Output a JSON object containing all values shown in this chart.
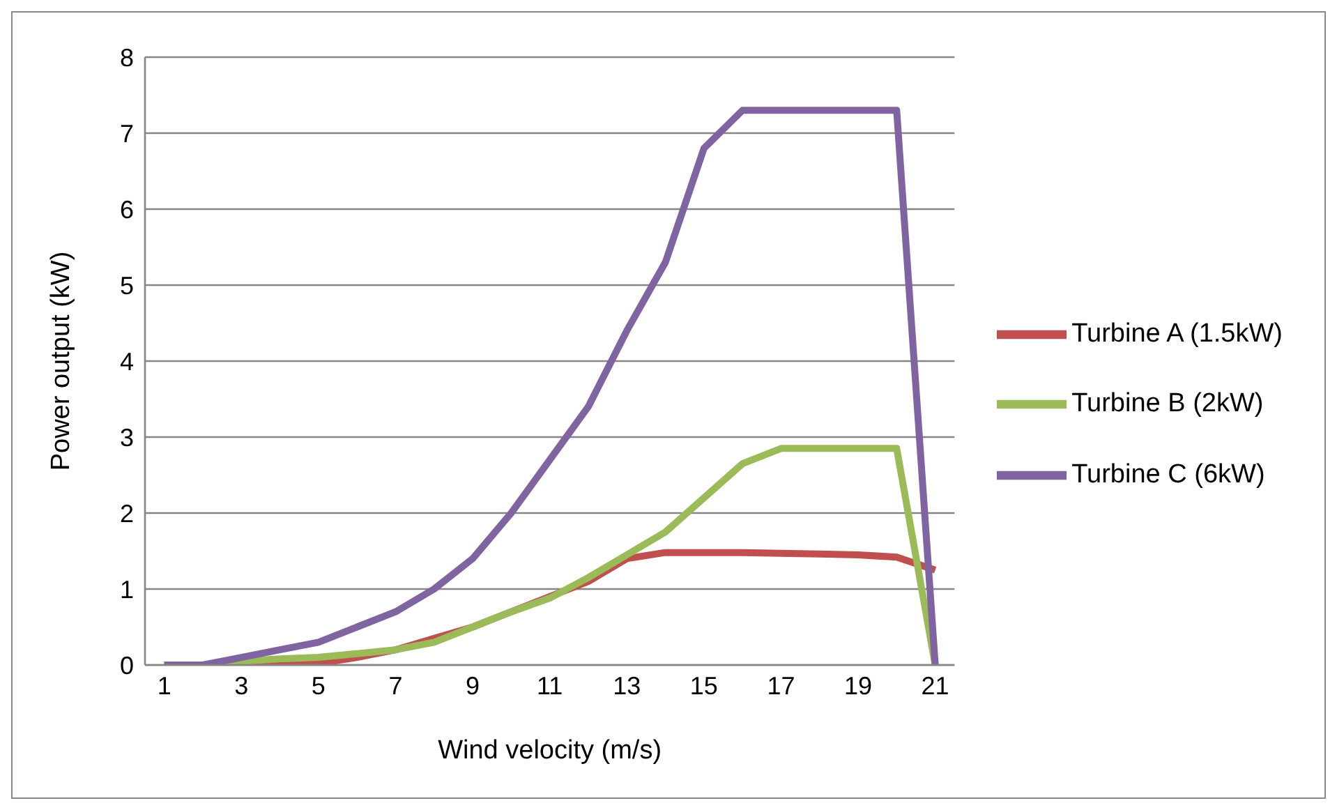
{
  "chart_data": {
    "type": "line",
    "xlabel": "Wind velocity (m/s)",
    "ylabel": "Power output (kW)",
    "x": [
      1,
      2,
      3,
      4,
      5,
      6,
      7,
      8,
      9,
      10,
      11,
      12,
      13,
      14,
      15,
      16,
      17,
      18,
      19,
      20,
      21
    ],
    "xlim": [
      0.5,
      21.5
    ],
    "xticks": [
      1,
      3,
      5,
      7,
      9,
      11,
      13,
      15,
      17,
      19,
      21
    ],
    "ylim": [
      0,
      8
    ],
    "yticks": [
      0,
      1,
      2,
      3,
      4,
      5,
      6,
      7,
      8
    ],
    "grid": "y",
    "legend": "right",
    "marker": "none",
    "line_style": "solid",
    "series": [
      {
        "name": "Turbine A (1.5kW)",
        "color": "#c0504d",
        "values": [
          0,
          0,
          0,
          0,
          0.02,
          0.1,
          0.2,
          0.35,
          0.5,
          0.7,
          0.9,
          1.1,
          1.4,
          1.48,
          1.48,
          1.48,
          1.47,
          1.46,
          1.45,
          1.42,
          1.25
        ]
      },
      {
        "name": "Turbine B (2kW)",
        "color": "#9bbb59",
        "values": [
          0,
          0,
          0.05,
          0.08,
          0.1,
          0.15,
          0.2,
          0.3,
          0.5,
          0.7,
          0.88,
          1.15,
          1.45,
          1.75,
          2.2,
          2.65,
          2.85,
          2.85,
          2.85,
          2.85,
          0
        ]
      },
      {
        "name": "Turbine C (6kW)",
        "color": "#8064a2",
        "values": [
          0,
          0,
          0.1,
          0.2,
          0.3,
          0.5,
          0.7,
          1.0,
          1.4,
          2.0,
          2.7,
          3.4,
          4.4,
          5.3,
          6.8,
          7.3,
          7.3,
          7.3,
          7.3,
          7.3,
          0
        ]
      }
    ]
  }
}
